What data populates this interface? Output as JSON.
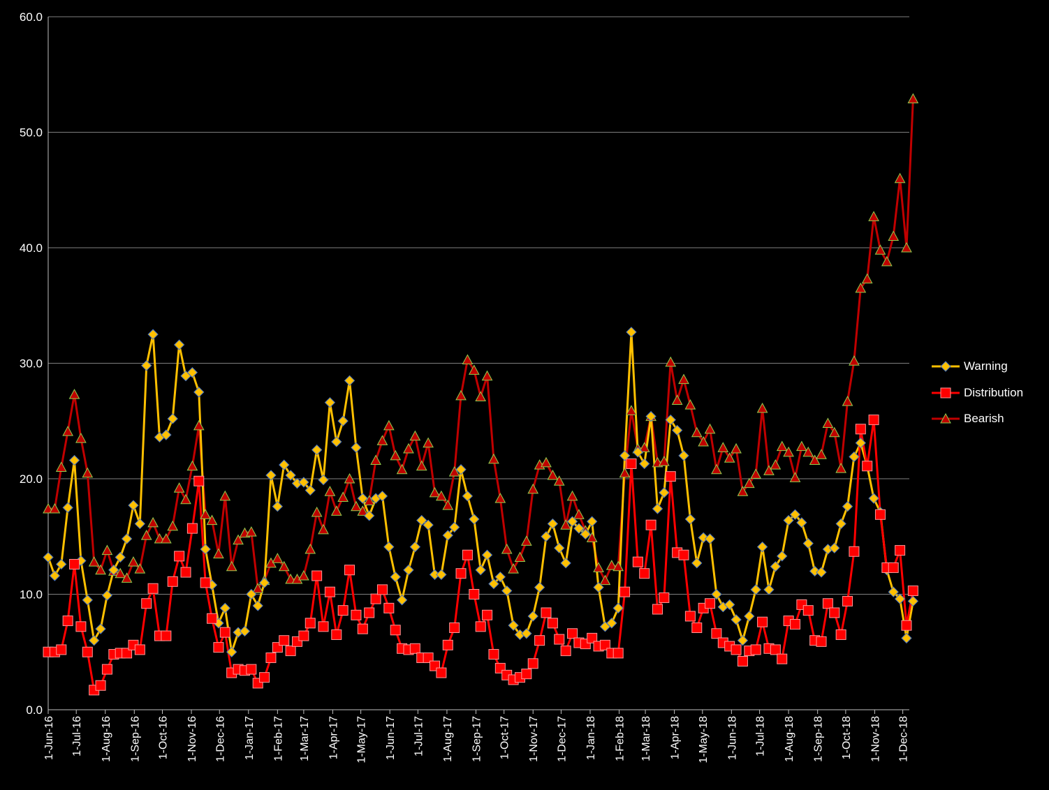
{
  "chart_data": {
    "type": "line",
    "title": "",
    "xlabel": "",
    "ylabel": "",
    "ylim": [
      0,
      60
    ],
    "yticks": [
      "0.0",
      "10.0",
      "20.0",
      "30.0",
      "40.0",
      "50.0",
      "60.0"
    ],
    "x_tick_labels": [
      "1-Jun-16",
      "1-Jul-16",
      "1-Aug-16",
      "1-Sep-16",
      "1-Oct-16",
      "1-Nov-16",
      "1-Dec-16",
      "1-Jan-17",
      "1-Feb-17",
      "1-Mar-17",
      "1-Apr-17",
      "1-May-17",
      "1-Jun-17",
      "1-Jul-17",
      "1-Aug-17",
      "1-Sep-17",
      "1-Oct-17",
      "1-Nov-17",
      "1-Dec-17",
      "1-Jan-18",
      "1-Feb-18",
      "1-Mar-18",
      "1-Apr-18",
      "1-May-18",
      "1-Jun-18",
      "1-Jul-18",
      "1-Aug-18",
      "1-Sep-18",
      "1-Oct-18",
      "1-Nov-18",
      "1-Dec-18"
    ],
    "x_start": "2016-06-01",
    "x_end": "2018-12-08",
    "x_interval_days": 7,
    "grid": true,
    "legend_position": "right",
    "series": [
      {
        "name": "Warning",
        "line_color": "#FFC000",
        "marker": "diamond",
        "values": [
          13.2,
          11.6,
          12.6,
          17.5,
          21.6,
          12.9,
          9.5,
          6.0,
          7.0,
          9.9,
          12.1,
          13.2,
          14.8,
          17.7,
          16.1,
          29.8,
          32.5,
          23.6,
          23.8,
          25.2,
          31.6,
          28.9,
          29.2,
          27.5,
          13.9,
          10.8,
          7.5,
          8.8,
          5.0,
          6.7,
          6.8,
          10.0,
          9.0,
          11.0,
          20.3,
          17.6,
          21.2,
          20.3,
          19.6,
          19.7,
          19.0,
          22.5,
          19.9,
          26.6,
          23.2,
          25.0,
          28.5,
          22.7,
          18.3,
          16.8,
          18.3,
          18.5,
          14.1,
          11.5,
          9.5,
          12.1,
          14.1,
          16.4,
          16.0,
          11.7,
          11.7,
          15.1,
          15.8,
          20.8,
          18.5,
          16.5,
          12.1,
          13.4,
          10.9,
          11.5,
          10.3,
          7.3,
          6.5,
          6.6,
          8.1,
          10.6,
          15.0,
          16.1,
          14.0,
          12.7,
          16.3,
          15.7,
          15.2,
          16.3,
          10.6,
          7.2,
          7.5,
          8.8,
          22.0,
          32.7,
          22.3,
          21.3,
          25.4,
          17.4,
          18.8,
          25.1,
          24.2,
          22.0,
          16.5,
          12.7,
          14.9,
          14.8,
          10.0,
          8.9,
          9.1,
          7.8,
          6.0,
          8.1,
          10.4,
          14.1,
          10.4,
          12.4,
          13.3,
          16.4,
          16.9,
          16.2,
          14.4,
          12.0,
          11.9,
          13.9,
          14.0,
          16.1,
          17.6,
          21.9,
          23.1,
          21.1,
          18.3,
          17.1,
          12.1,
          10.2,
          9.6,
          6.2,
          9.4
        ]
      },
      {
        "name": "Distribution",
        "line_color": "#FF0000",
        "marker": "square",
        "values": [
          5.0,
          5.0,
          5.2,
          7.7,
          12.6,
          7.2,
          5.0,
          1.7,
          2.1,
          3.5,
          4.8,
          4.9,
          4.9,
          5.6,
          5.2,
          9.2,
          10.5,
          6.4,
          6.4,
          11.1,
          13.3,
          11.9,
          15.7,
          19.8,
          11.0,
          7.9,
          5.4,
          6.7,
          3.2,
          3.5,
          3.4,
          3.5,
          2.3,
          2.8,
          4.5,
          5.4,
          6.0,
          5.1,
          5.9,
          6.4,
          7.5,
          11.6,
          7.2,
          10.2,
          6.5,
          8.6,
          12.1,
          8.2,
          7.0,
          8.4,
          9.6,
          10.4,
          8.8,
          6.9,
          5.3,
          5.2,
          5.3,
          4.5,
          4.5,
          3.8,
          3.2,
          5.6,
          7.1,
          11.8,
          13.4,
          10.0,
          7.2,
          8.2,
          4.8,
          3.6,
          3.0,
          2.6,
          2.8,
          3.1,
          4.0,
          6.0,
          8.4,
          7.5,
          6.1,
          5.1,
          6.6,
          5.8,
          5.7,
          6.2,
          5.5,
          5.6,
          4.9,
          4.9,
          10.2,
          21.3,
          12.8,
          11.8,
          16.0,
          8.7,
          9.7,
          20.2,
          13.6,
          13.4,
          8.1,
          7.1,
          8.8,
          9.2,
          6.6,
          5.8,
          5.5,
          5.2,
          4.2,
          5.1,
          5.2,
          7.6,
          5.3,
          5.2,
          4.4,
          7.7,
          7.4,
          9.1,
          8.6,
          6.0,
          5.9,
          9.2,
          8.4,
          6.5,
          9.4,
          13.7,
          24.3,
          21.1,
          25.1,
          16.9,
          12.3,
          12.3,
          13.8,
          7.3,
          10.3
        ]
      },
      {
        "name": "Bearish",
        "line_color": "#C00000",
        "marker": "triangle",
        "values": [
          17.4,
          17.4,
          21.0,
          24.1,
          27.3,
          23.5,
          20.5,
          12.8,
          12.1,
          13.8,
          12.0,
          11.8,
          11.4,
          12.8,
          12.2,
          15.1,
          16.2,
          14.8,
          14.8,
          15.9,
          19.2,
          18.2,
          21.1,
          24.6,
          16.9,
          16.4,
          13.5,
          18.5,
          12.4,
          14.7,
          15.3,
          15.4,
          10.5,
          11.2,
          12.7,
          13.1,
          12.4,
          11.3,
          11.3,
          11.6,
          13.9,
          17.1,
          15.6,
          18.9,
          17.2,
          18.4,
          20.0,
          17.6,
          17.2,
          18.1,
          21.6,
          23.3,
          24.6,
          22.0,
          20.8,
          22.6,
          23.7,
          21.1,
          23.1,
          18.8,
          18.5,
          17.7,
          20.6,
          27.2,
          30.3,
          29.4,
          27.1,
          28.9,
          21.7,
          18.3,
          13.9,
          12.2,
          13.2,
          14.6,
          19.1,
          21.2,
          21.4,
          20.3,
          19.8,
          16.0,
          18.5,
          16.9,
          15.5,
          14.9,
          12.3,
          11.2,
          12.5,
          12.4,
          20.5,
          25.9,
          22.6,
          22.7,
          25.4,
          21.4,
          21.5,
          30.1,
          26.8,
          28.6,
          26.4,
          24.0,
          23.2,
          24.3,
          20.8,
          22.7,
          21.8,
          22.6,
          18.9,
          19.6,
          20.4,
          26.1,
          20.7,
          21.2,
          22.8,
          22.3,
          20.1,
          22.8,
          22.3,
          21.6,
          22.1,
          24.8,
          24.0,
          20.9,
          26.7,
          30.2,
          36.5,
          37.3,
          42.7,
          39.8,
          38.8,
          41.0,
          46.0,
          40.0,
          52.9
        ]
      }
    ]
  },
  "colors": {
    "background": "#000000",
    "gridline": "#7F7F7F",
    "axis": "#BFBFBF",
    "text": "#FFFFFF",
    "marker_outline_warning": "#4472C4",
    "marker_outline_distribution": "#FF9999",
    "marker_outline_bearish": "#92D050"
  }
}
